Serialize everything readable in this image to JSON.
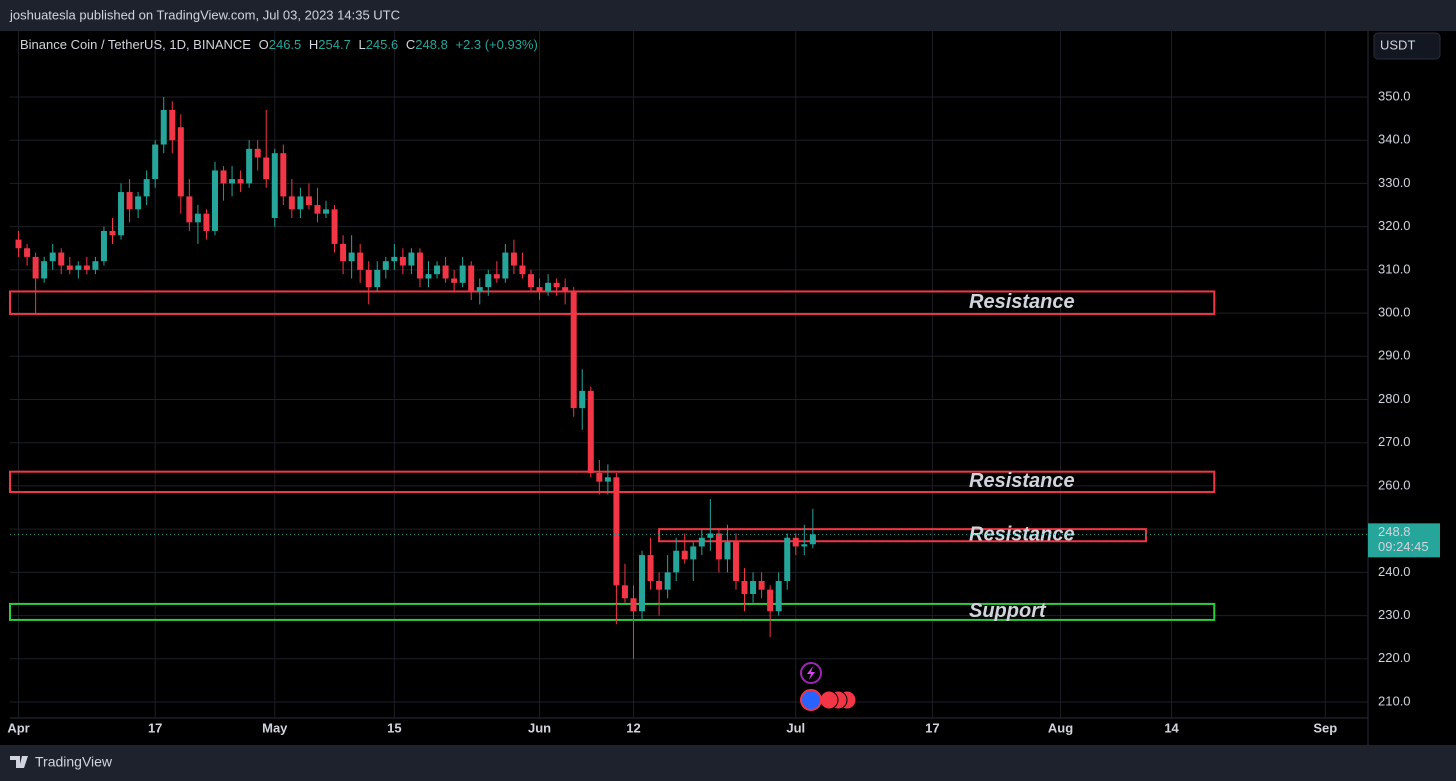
{
  "header": {
    "text": "joshuatesla published on TradingView.com, Jul 03, 2023 14:35 UTC"
  },
  "legend": {
    "symbol": "Binance Coin / TetherUS, 1D, BINANCE",
    "ohlc_labels": [
      "O",
      "H",
      "L",
      "C"
    ],
    "change": "+2.3 (+0.93%)"
  },
  "currency_button": "USDT",
  "countdown": "09:24:45",
  "footer": {
    "brand": "TradingView"
  },
  "chart_data": {
    "type": "candlestick",
    "up_color": "#26a69a",
    "down_color": "#f23645",
    "x": [
      "Apr 1",
      "Apr 2",
      "Apr 3",
      "Apr 4",
      "Apr 5",
      "Apr 6",
      "Apr 7",
      "Apr 8",
      "Apr 9",
      "Apr 10",
      "Apr 11",
      "Apr 12",
      "Apr 13",
      "Apr 14",
      "Apr 15",
      "Apr 16",
      "Apr 17",
      "Apr 18",
      "Apr 19",
      "Apr 20",
      "Apr 21",
      "Apr 22",
      "Apr 23",
      "Apr 24",
      "Apr 25",
      "Apr 26",
      "Apr 27",
      "Apr 28",
      "Apr 29",
      "Apr 30",
      "May 1",
      "May 2",
      "May 3",
      "May 4",
      "May 5",
      "May 6",
      "May 7",
      "May 8",
      "May 9",
      "May 10",
      "May 11",
      "May 12",
      "May 13",
      "May 14",
      "May 15",
      "May 16",
      "May 17",
      "May 18",
      "May 19",
      "May 20",
      "May 21",
      "May 22",
      "May 23",
      "May 24",
      "May 25",
      "May 26",
      "May 27",
      "May 28",
      "May 29",
      "May 30",
      "May 31",
      "Jun 1",
      "Jun 2",
      "Jun 3",
      "Jun 4",
      "Jun 5",
      "Jun 6",
      "Jun 7",
      "Jun 8",
      "Jun 9",
      "Jun 10",
      "Jun 11",
      "Jun 12",
      "Jun 13",
      "Jun 14",
      "Jun 15",
      "Jun 16",
      "Jun 17",
      "Jun 18",
      "Jun 19",
      "Jun 20",
      "Jun 21",
      "Jun 22",
      "Jun 23",
      "Jun 24",
      "Jun 25",
      "Jun 26",
      "Jun 27",
      "Jun 28",
      "Jun 29",
      "Jun 30",
      "Jul 1",
      "Jul 2",
      "Jul 3"
    ],
    "open": [
      317,
      315,
      313,
      308,
      312,
      314,
      311,
      310,
      311,
      310,
      312,
      319,
      318,
      328,
      324,
      327,
      331,
      339,
      347,
      343,
      327,
      321,
      323,
      319,
      333,
      330,
      331,
      330,
      338,
      336,
      322,
      337,
      327,
      324,
      327,
      325,
      323,
      324,
      316,
      312,
      314,
      310,
      306,
      310,
      312,
      313,
      311,
      314,
      308,
      309,
      311,
      308,
      307,
      311,
      305,
      306,
      309,
      308,
      314,
      311,
      309,
      306,
      305,
      307,
      306,
      305,
      278,
      282,
      263,
      261,
      262,
      237,
      234,
      231,
      244,
      238,
      236,
      240,
      245,
      243,
      246,
      248,
      249,
      243,
      247,
      238,
      235,
      238,
      236,
      231,
      238,
      248,
      246,
      246.5
    ],
    "high": [
      319,
      316,
      314,
      313,
      316,
      315,
      313,
      312,
      313,
      313,
      320,
      322,
      330,
      331,
      328,
      333,
      340,
      350,
      349,
      346,
      331,
      325,
      324,
      335,
      334,
      334,
      333,
      340,
      340,
      347,
      338,
      339,
      331,
      329,
      330,
      329,
      326,
      325,
      318,
      318,
      316,
      312,
      312,
      313,
      316,
      315,
      315,
      315,
      312,
      312,
      313,
      310,
      313,
      312,
      308,
      310,
      312,
      316,
      317,
      314,
      310,
      308,
      309,
      308,
      308,
      306,
      287,
      283,
      266,
      265,
      263,
      242,
      237,
      245,
      248,
      240,
      244,
      248,
      249,
      247,
      250,
      257,
      250,
      251,
      249,
      241,
      240,
      240,
      237,
      240,
      249,
      249,
      251,
      254.7
    ],
    "low": [
      313,
      311,
      300,
      307,
      310,
      309,
      309,
      308,
      309,
      309,
      311,
      316,
      317,
      321,
      322,
      325,
      329,
      337,
      337,
      323,
      319,
      316,
      317,
      318,
      326,
      327,
      328,
      329,
      333,
      329,
      320,
      325,
      322,
      322,
      324,
      321,
      322,
      314,
      309,
      308,
      307,
      302,
      305,
      308,
      310,
      309,
      309,
      306,
      306,
      308,
      307,
      305,
      306,
      303,
      302,
      304,
      307,
      307,
      309,
      308,
      305,
      303,
      304,
      304,
      302,
      276,
      273,
      262,
      258,
      258,
      228,
      233,
      220,
      229,
      236,
      230,
      234,
      238,
      242,
      238,
      244,
      245,
      240,
      240,
      236,
      231,
      233,
      234,
      225,
      230,
      236,
      244,
      244,
      245.6
    ],
    "close": [
      315,
      313,
      308,
      312,
      314,
      311,
      310,
      311,
      310,
      312,
      319,
      318,
      328,
      324,
      327,
      331,
      339,
      347,
      340,
      327,
      321,
      323,
      319,
      333,
      330,
      331,
      330,
      338,
      336,
      331,
      337,
      327,
      324,
      327,
      325,
      323,
      324,
      316,
      312,
      314,
      310,
      306,
      310,
      312,
      313,
      311,
      314,
      308,
      309,
      311,
      308,
      307,
      311,
      305,
      306,
      309,
      308,
      314,
      311,
      309,
      306,
      305,
      307,
      306,
      305,
      278,
      282,
      263,
      261,
      262,
      237,
      234,
      231,
      244,
      238,
      236,
      240,
      245,
      243,
      246,
      248,
      249,
      243,
      247,
      238,
      235,
      238,
      236,
      231,
      238,
      248,
      246,
      246.5,
      248.8
    ],
    "xlim": [
      "Mar 31",
      "Sep 6"
    ],
    "xticks": [
      {
        "value": "Apr 1",
        "label": "Apr"
      },
      {
        "value": "Apr 17",
        "label": "17"
      },
      {
        "value": "May 1",
        "label": "May"
      },
      {
        "value": "May 15",
        "label": "15"
      },
      {
        "value": "Jun 1",
        "label": "Jun"
      },
      {
        "value": "Jun 12",
        "label": "12"
      },
      {
        "value": "Jul 1",
        "label": "Jul"
      },
      {
        "value": "Jul 17",
        "label": "17"
      },
      {
        "value": "Aug 1",
        "label": "Aug"
      },
      {
        "value": "Aug 14",
        "label": "14"
      },
      {
        "value": "Sep 1",
        "label": "Sep"
      }
    ],
    "ylim": [
      206.3,
      365.5
    ],
    "yticks": [
      {
        "value": 210,
        "label": "210.0"
      },
      {
        "value": 220,
        "label": "220.0"
      },
      {
        "value": 230,
        "label": "230.0"
      },
      {
        "value": 240,
        "label": "240.0"
      },
      {
        "value": 250,
        "label": "250.0"
      },
      {
        "value": 260,
        "label": "260.0"
      },
      {
        "value": 270,
        "label": "270.0"
      },
      {
        "value": 280,
        "label": "280.0"
      },
      {
        "value": 290,
        "label": "290.0"
      },
      {
        "value": 300,
        "label": "300.0"
      },
      {
        "value": 310,
        "label": "310.0"
      },
      {
        "value": 320,
        "label": "320.0"
      },
      {
        "value": 330,
        "label": "330.0"
      },
      {
        "value": 340,
        "label": "340.0"
      },
      {
        "value": 350,
        "label": "350.0"
      }
    ],
    "grid": true,
    "last_price": 248.8,
    "zones": [
      {
        "label": "Resistance",
        "low": 299.8,
        "high": 305,
        "from": "Mar 31",
        "to": "Aug 19",
        "color": "#f23645"
      },
      {
        "label": "Resistance",
        "low": 258.6,
        "high": 263.3,
        "from": "Mar 31",
        "to": "Aug 19",
        "color": "#f23645"
      },
      {
        "label": "Resistance",
        "low": 247.2,
        "high": 250,
        "from": "Jun 15",
        "to": "Aug 11",
        "color": "#f23645"
      },
      {
        "label": "Support",
        "low": 229,
        "high": 232.7,
        "from": "Mar 31",
        "to": "Aug 19",
        "color": "#2ecc40"
      }
    ]
  }
}
